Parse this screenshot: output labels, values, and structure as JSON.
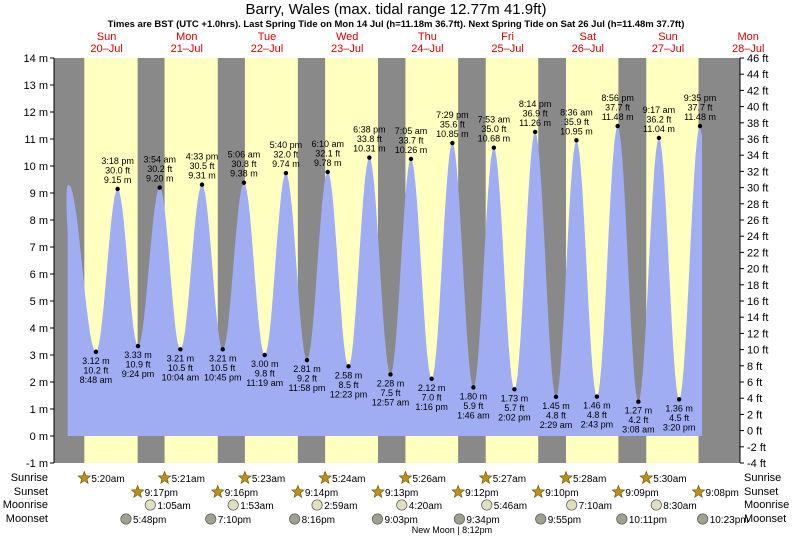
{
  "title": "Barry, Wales (max. tidal range 12.77m 41.9ft)",
  "subtitle": "Times are BST (UTC +1.0hrs). Last Spring Tide on Mon 14 Jul (h=11.18m 36.7ft). Next Spring Tide on Sat 26 Jul (h=11.48m 37.7ft)",
  "colors": {
    "night": "#898989",
    "day": "#ffffc0",
    "tide": "#a0adf2",
    "accent_red": "#dd0000",
    "sun_icon": "#b8901a",
    "moon_icon": "#e0e0c0",
    "moonset_icon": "#a0a090"
  },
  "chart_data": {
    "type": "area",
    "title": "Barry, Wales (max. tidal range 12.77m 41.9ft)",
    "ylabel_left": "m",
    "ylabel_right": "ft",
    "ylim_m": [
      -1,
      14
    ],
    "ylim_ft": [
      -4,
      46
    ],
    "left_ticks": [
      "14 m",
      "13 m",
      "12 m",
      "11 m",
      "10 m",
      "9 m",
      "8 m",
      "7 m",
      "6 m",
      "5 m",
      "4 m",
      "3 m",
      "2 m",
      "1 m",
      "0 m",
      "-1 m"
    ],
    "right_ticks": [
      "46 ft",
      "44 ft",
      "42 ft",
      "40 ft",
      "38 ft",
      "36 ft",
      "34 ft",
      "32 ft",
      "30 ft",
      "28 ft",
      "26 ft",
      "24 ft",
      "22 ft",
      "20 ft",
      "18 ft",
      "16 ft",
      "14 ft",
      "12 ft",
      "10 ft",
      "8 ft",
      "6 ft",
      "4 ft",
      "2 ft",
      "0 ft",
      "-2 ft",
      "-4 ft"
    ],
    "days": [
      {
        "dow": "Sun",
        "date": "20–Jul"
      },
      {
        "dow": "Mon",
        "date": "21–Jul"
      },
      {
        "dow": "Tue",
        "date": "22–Jul"
      },
      {
        "dow": "Wed",
        "date": "23–Jul"
      },
      {
        "dow": "Thu",
        "date": "24–Jul"
      },
      {
        "dow": "Fri",
        "date": "25–Jul"
      },
      {
        "dow": "Sat",
        "date": "26–Jul"
      },
      {
        "dow": "Sun",
        "date": "27–Jul"
      },
      {
        "dow": "Mon",
        "date": "28–Jul"
      }
    ],
    "daylight": [
      {
        "rise": "05:20",
        "set": "21:17"
      },
      {
        "rise": "05:21",
        "set": "21:16"
      },
      {
        "rise": "05:23",
        "set": "21:14"
      },
      {
        "rise": "05:24",
        "set": "21:13"
      },
      {
        "rise": "05:26",
        "set": "21:12"
      },
      {
        "rise": "05:27",
        "set": "21:10"
      },
      {
        "rise": "05:28",
        "set": "21:09"
      },
      {
        "rise": "05:30",
        "set": "21:08"
      }
    ],
    "tides": [
      {
        "type": "high",
        "day": 0,
        "time": "3:18 pm",
        "m": 9.15,
        "ft": 30.0,
        "label": [
          "3:18 pm",
          "30.0 ft",
          "9.15 m"
        ]
      },
      {
        "type": "low",
        "day": 0,
        "time": "8:48 am",
        "m": 3.12,
        "ft": 10.2,
        "label": [
          "3.12 m",
          "10.2 ft",
          "8:48 am"
        ]
      },
      {
        "type": "low",
        "day": 0,
        "time": "9:24 pm",
        "m": 3.33,
        "ft": 10.9,
        "label": [
          "3.33 m",
          "10.9 ft",
          "9:24 pm"
        ]
      },
      {
        "type": "high",
        "day": 1,
        "time": "3:54 am",
        "m": 9.2,
        "ft": 30.2,
        "label": [
          "3:54 am",
          "30.2 ft",
          "9.20 m"
        ]
      },
      {
        "type": "low",
        "day": 1,
        "time": "10:04 am",
        "m": 3.21,
        "ft": 10.5,
        "label": [
          "3.21 m",
          "10.5 ft",
          "10:04 am"
        ]
      },
      {
        "type": "high",
        "day": 1,
        "time": "4:33 pm",
        "m": 9.31,
        "ft": 30.5,
        "label": [
          "4:33 pm",
          "30.5 ft",
          "9.31 m"
        ]
      },
      {
        "type": "low",
        "day": 1,
        "time": "10:45 pm",
        "m": 3.21,
        "ft": 10.5,
        "label": [
          "3.21 m",
          "10.5 ft",
          "10:45 pm"
        ]
      },
      {
        "type": "high",
        "day": 2,
        "time": "5:06 am",
        "m": 9.38,
        "ft": 30.8,
        "label": [
          "5:06 am",
          "30.8 ft",
          "9.38 m"
        ]
      },
      {
        "type": "low",
        "day": 2,
        "time": "11:19 am",
        "m": 3.0,
        "ft": 9.8,
        "label": [
          "3.00 m",
          "9.8 ft",
          "11:19 am"
        ]
      },
      {
        "type": "high",
        "day": 2,
        "time": "5:40 pm",
        "m": 9.74,
        "ft": 32.0,
        "label": [
          "5:40 pm",
          "32.0 ft",
          "9.74 m"
        ]
      },
      {
        "type": "low",
        "day": 2,
        "time": "11:58 pm",
        "m": 2.81,
        "ft": 9.2,
        "label": [
          "2.81 m",
          "9.2 ft",
          "11:58 pm"
        ]
      },
      {
        "type": "high",
        "day": 3,
        "time": "6:10 am",
        "m": 9.78,
        "ft": 32.1,
        "label": [
          "6:10 am",
          "32.1 ft",
          "9.78 m"
        ]
      },
      {
        "type": "low",
        "day": 3,
        "time": "12:23 pm",
        "m": 2.58,
        "ft": 8.5,
        "label": [
          "2.58 m",
          "8.5 ft",
          "12:23 pm"
        ]
      },
      {
        "type": "high",
        "day": 3,
        "time": "6:38 pm",
        "m": 10.31,
        "ft": 33.8,
        "label": [
          "6:38 pm",
          "33.8 ft",
          "10.31 m"
        ]
      },
      {
        "type": "low",
        "day": 4,
        "time": "12:57 am",
        "m": 2.28,
        "ft": 7.5,
        "label": [
          "2.28 m",
          "7.5 ft",
          "12:57 am"
        ]
      },
      {
        "type": "high",
        "day": 4,
        "time": "7:05 am",
        "m": 10.26,
        "ft": 33.7,
        "label": [
          "7:05 am",
          "33.7 ft",
          "10.26 m"
        ]
      },
      {
        "type": "low",
        "day": 4,
        "time": "1:16 pm",
        "m": 2.12,
        "ft": 7.0,
        "label": [
          "2.12 m",
          "7.0 ft",
          "1:16 pm"
        ]
      },
      {
        "type": "high",
        "day": 4,
        "time": "7:29 pm",
        "m": 10.85,
        "ft": 35.6,
        "label": [
          "7:29 pm",
          "35.6 ft",
          "10.85 m"
        ]
      },
      {
        "type": "low",
        "day": 5,
        "time": "1:46 am",
        "m": 1.8,
        "ft": 5.9,
        "label": [
          "1.80 m",
          "5.9 ft",
          "1:46 am"
        ]
      },
      {
        "type": "high",
        "day": 5,
        "time": "7:53 am",
        "m": 10.68,
        "ft": 35.0,
        "label": [
          "7:53 am",
          "35.0 ft",
          "10.68 m"
        ]
      },
      {
        "type": "low",
        "day": 5,
        "time": "2:02 pm",
        "m": 1.73,
        "ft": 5.7,
        "label": [
          "1.73 m",
          "5.7 ft",
          "2:02 pm"
        ]
      },
      {
        "type": "high",
        "day": 5,
        "time": "8:14 pm",
        "m": 11.26,
        "ft": 36.9,
        "label": [
          "8:14 pm",
          "36.9 ft",
          "11.26 m"
        ]
      },
      {
        "type": "low",
        "day": 6,
        "time": "2:29 am",
        "m": 1.45,
        "ft": 4.8,
        "label": [
          "1.45 m",
          "4.8 ft",
          "2:29 am"
        ]
      },
      {
        "type": "high",
        "day": 6,
        "time": "8:36 am",
        "m": 10.95,
        "ft": 35.9,
        "label": [
          "8:36 am",
          "35.9 ft",
          "10.95 m"
        ]
      },
      {
        "type": "low",
        "day": 6,
        "time": "2:43 pm",
        "m": 1.46,
        "ft": 4.8,
        "label": [
          "1.46 m",
          "4.8 ft",
          "2:43 pm"
        ]
      },
      {
        "type": "high",
        "day": 6,
        "time": "8:56 pm",
        "m": 11.48,
        "ft": 37.7,
        "label": [
          "8:56 pm",
          "37.7 ft",
          "11.48 m"
        ]
      },
      {
        "type": "low",
        "day": 7,
        "time": "3:08 am",
        "m": 1.27,
        "ft": 4.2,
        "label": [
          "1.27 m",
          "4.2 ft",
          "3:08 am"
        ]
      },
      {
        "type": "high",
        "day": 7,
        "time": "9:17 am",
        "m": 11.04,
        "ft": 36.2,
        "label": [
          "9:17 am",
          "36.2 ft",
          "11.04 m"
        ]
      },
      {
        "type": "low",
        "day": 7,
        "time": "3:20 pm",
        "m": 1.36,
        "ft": 4.5,
        "label": [
          "1.36 m",
          "4.5 ft",
          "3:20 pm"
        ]
      },
      {
        "type": "high",
        "day": 7,
        "time": "9:35 pm",
        "m": 11.48,
        "ft": 37.7,
        "label": [
          "9:35 pm",
          "37.7 ft",
          "11.48 m"
        ]
      }
    ]
  },
  "rows": {
    "labels": [
      "Sunrise",
      "Sunset",
      "Moonrise",
      "Moonset"
    ],
    "sunrise": [
      {
        "day": 0,
        "time": "5:20am"
      },
      {
        "day": 1,
        "time": "5:21am"
      },
      {
        "day": 2,
        "time": "5:23am"
      },
      {
        "day": 3,
        "time": "5:24am"
      },
      {
        "day": 4,
        "time": "5:26am"
      },
      {
        "day": 5,
        "time": "5:27am"
      },
      {
        "day": 6,
        "time": "5:28am"
      },
      {
        "day": 7,
        "time": "5:30am"
      }
    ],
    "sunset": [
      {
        "day": 0,
        "time": "9:17pm"
      },
      {
        "day": 1,
        "time": "9:16pm"
      },
      {
        "day": 2,
        "time": "9:14pm"
      },
      {
        "day": 3,
        "time": "9:13pm"
      },
      {
        "day": 4,
        "time": "9:12pm"
      },
      {
        "day": 5,
        "time": "9:10pm"
      },
      {
        "day": 6,
        "time": "9:09pm"
      },
      {
        "day": 7,
        "time": "9:08pm"
      }
    ],
    "moonrise": [
      {
        "day": 1,
        "time": "1:05am"
      },
      {
        "day": 2,
        "time": "1:53am"
      },
      {
        "day": 3,
        "time": "2:59am"
      },
      {
        "day": 4,
        "time": "4:20am"
      },
      {
        "day": 5,
        "time": "5:46am"
      },
      {
        "day": 6,
        "time": "7:10am"
      },
      {
        "day": 7,
        "time": "8:30am"
      }
    ],
    "moonset": [
      {
        "day": 0,
        "time": "5:48pm"
      },
      {
        "day": 1,
        "time": "7:10pm"
      },
      {
        "day": 2,
        "time": "8:16pm"
      },
      {
        "day": 3,
        "time": "9:03pm"
      },
      {
        "day": 4,
        "time": "9:34pm"
      },
      {
        "day": 5,
        "time": "9:55pm"
      },
      {
        "day": 6,
        "time": "10:11pm"
      },
      {
        "day": 7,
        "time": "10:23pm"
      }
    ],
    "new_moon": "New Moon | 8:12pm"
  }
}
